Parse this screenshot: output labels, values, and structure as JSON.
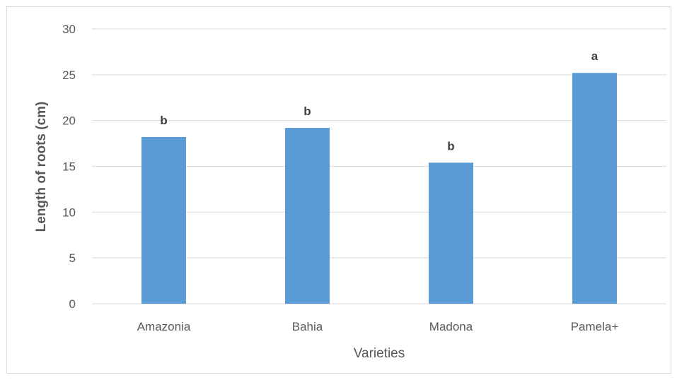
{
  "chart_data": {
    "type": "bar",
    "categories": [
      "Amazonia",
      "Bahia",
      "Madona",
      "Pamela+"
    ],
    "values": [
      18.2,
      19.2,
      15.4,
      25.2
    ],
    "significance_labels": [
      "b",
      "b",
      "b",
      "a"
    ],
    "title": "",
    "xlabel": "Varieties",
    "ylabel": "Length of roots (cm)",
    "ylim": [
      0,
      30
    ],
    "yticks": [
      0,
      5,
      10,
      15,
      20,
      25,
      30
    ],
    "grid": true,
    "legend": "none",
    "bar_color": "#5B9BD5",
    "grid_color": "#D9D9D9"
  }
}
